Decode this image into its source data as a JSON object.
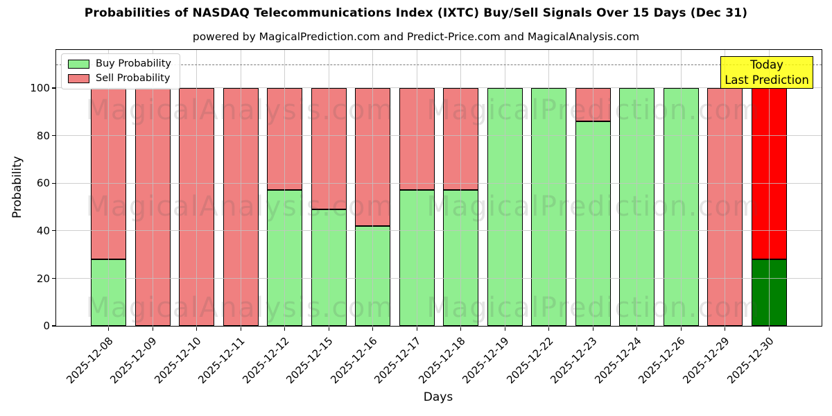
{
  "annotation": {
    "line1": "Today",
    "line2": "Last Prediction"
  },
  "watermarks": {
    "left": "MagicalAnalysis.com",
    "right": "MagicalPrediction.com"
  },
  "colors": {
    "buy": "#90ee90",
    "sell": "#f08080",
    "buy_today": "#008000",
    "sell_today": "#ff0000",
    "bar_edge": "#000000",
    "grid": "#c3c3c3",
    "dashed_line": "#7a7a7a",
    "annotation_bg": "#ffff00",
    "legend_border": "#cccccc"
  },
  "chart_data": {
    "type": "bar",
    "stacked": true,
    "title": "Probabilities of NASDAQ Telecommunications Index (IXTC) Buy/Sell Signals Over 15 Days (Dec 31)",
    "subtitle": "powered by MagicalPrediction.com and Predict-Price.com and MagicalAnalysis.com",
    "xlabel": "Days",
    "ylabel": "Probability",
    "ylim": [
      0,
      116
    ],
    "yticks": [
      0,
      20,
      40,
      60,
      80,
      100
    ],
    "dashed_line_y": 110,
    "grid": true,
    "legend_position": "upper left",
    "categories": [
      "2025-12-08",
      "2025-12-09",
      "2025-12-10",
      "2025-12-11",
      "2025-12-12",
      "2025-12-15",
      "2025-12-16",
      "2025-12-17",
      "2025-12-18",
      "2025-12-19",
      "2025-12-22",
      "2025-12-23",
      "2025-12-24",
      "2025-12-26",
      "2025-12-29",
      "2025-12-30"
    ],
    "series": [
      {
        "name": "Buy Probability",
        "values": [
          28,
          0,
          0,
          0,
          57,
          49,
          42,
          57,
          57,
          100,
          100,
          86,
          100,
          100,
          0,
          28
        ]
      },
      {
        "name": "Sell Probability",
        "values": [
          72,
          100,
          100,
          100,
          43,
          51,
          58,
          43,
          43,
          0,
          0,
          14,
          0,
          0,
          100,
          72
        ]
      }
    ],
    "today_index": 15
  }
}
